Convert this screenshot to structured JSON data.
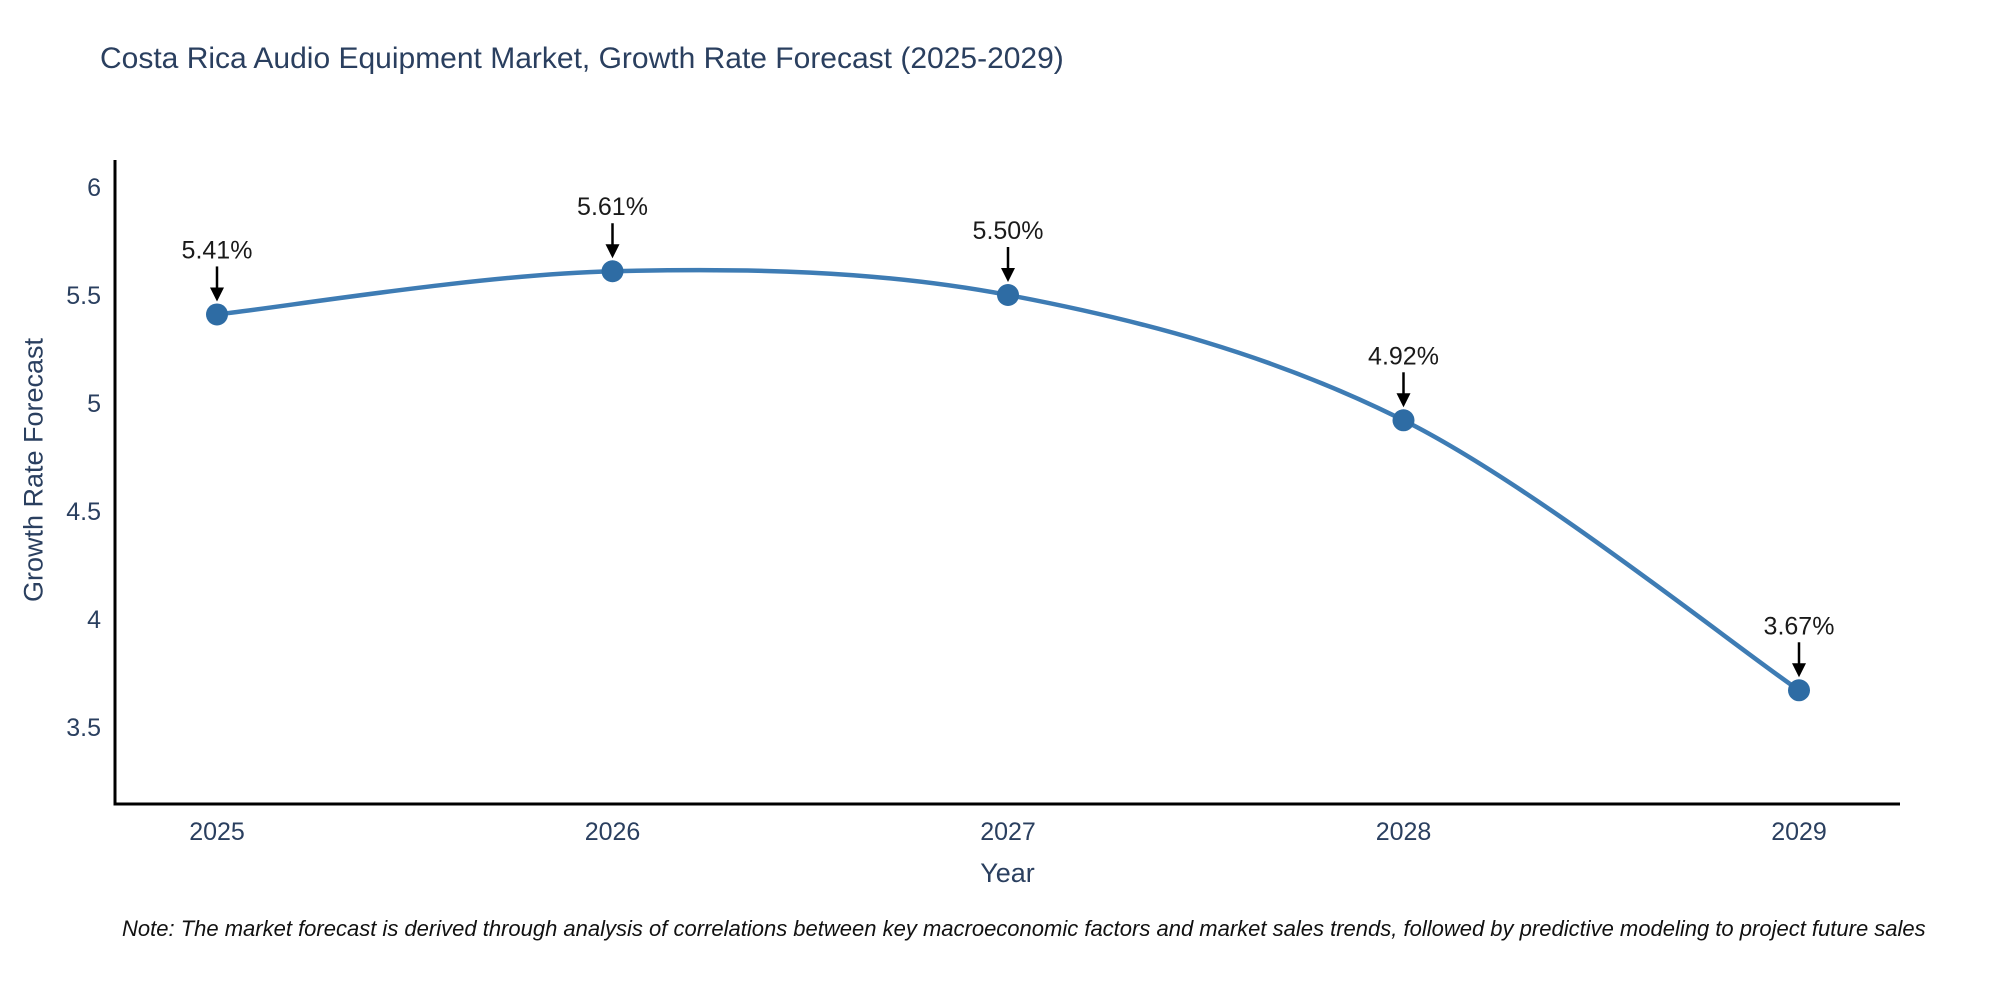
{
  "chart_data": {
    "type": "line",
    "title": "Costa Rica Audio Equipment Market, Growth Rate Forecast (2025-2029)",
    "xlabel": "Year",
    "ylabel": "Growth Rate Forecast",
    "categories": [
      2025,
      2026,
      2027,
      2028,
      2029
    ],
    "series": [
      {
        "name": "Growth Rate Forecast",
        "values": [
          5.41,
          5.61,
          5.5,
          4.92,
          3.67
        ]
      }
    ],
    "point_labels": [
      "5.41%",
      "5.61%",
      "5.50%",
      "4.92%",
      "3.67%"
    ],
    "y_ticks": [
      6,
      5.5,
      5,
      4.5,
      4,
      3.5
    ],
    "ylim": [
      3.14,
      6.13
    ],
    "grid": false,
    "legend": "none",
    "line_shape": "spline",
    "colors": {
      "line": "#3e7cb4",
      "marker": "#2e6ca4",
      "axis": "#000000",
      "annotation_arrow": "#000000"
    }
  },
  "note": "Note: The market forecast is derived through analysis of correlations between key macroeconomic factors and market sales trends, followed by predictive modeling to project future sales"
}
